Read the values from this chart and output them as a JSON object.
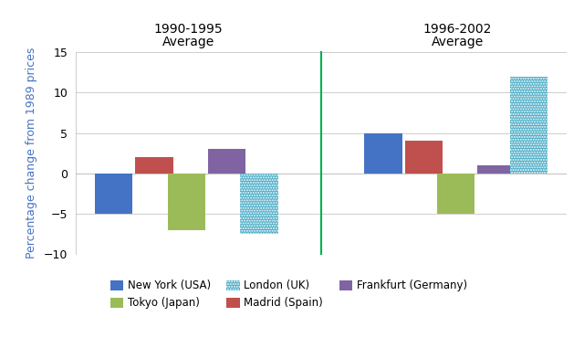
{
  "cities": [
    "New York (USA)",
    "Madrid (Spain)",
    "Tokyo (Japan)",
    "Frankfurt (Germany)",
    "London (UK)"
  ],
  "period1_values": [
    -5,
    2,
    -7,
    3,
    -7.5
  ],
  "period2_values": [
    5,
    4,
    -5,
    1,
    12
  ],
  "colors": [
    "#4472C4",
    "#C0504D",
    "#9BBB59",
    "#8064A2",
    "#4BACC6"
  ],
  "dotted_city_index": 4,
  "ylabel": "Percentage change from 1989 prices",
  "ylim": [
    -10,
    15
  ],
  "yticks": [
    -10,
    -5,
    0,
    5,
    10,
    15
  ],
  "divider_color": "#00B050",
  "background_color": "#FFFFFF",
  "grid_color": "#BBBBBB",
  "bar_width": 0.7,
  "period1_label_line1": "1990-1995",
  "period1_label_line2": "Average",
  "period2_label_line1": "1996-2002",
  "period2_label_line2": "Average",
  "legend_order": [
    0,
    2,
    4,
    1,
    3
  ]
}
